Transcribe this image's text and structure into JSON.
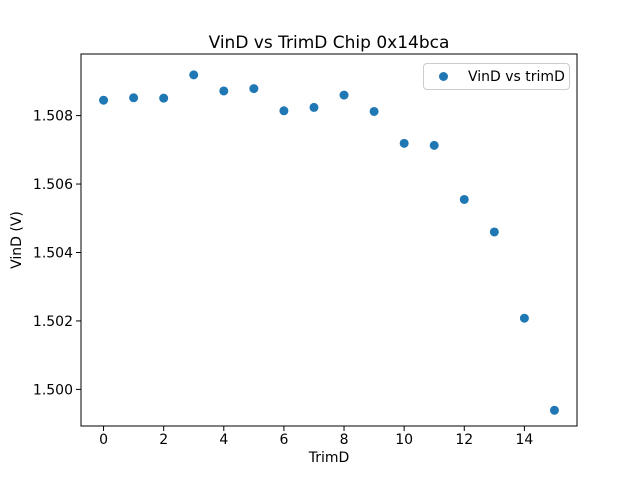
{
  "chart_data": {
    "type": "scatter",
    "title": "VinD vs TrimD Chip 0x14bca",
    "xlabel": "TrimD",
    "ylabel": "VinD (V)",
    "legend": {
      "label": "VinD vs trimD",
      "position": "upper right"
    },
    "grid": false,
    "series": [
      {
        "name": "VinD vs trimD",
        "marker": "circle",
        "marker_color": "#1f77b4",
        "x": [
          0,
          1,
          2,
          3,
          4,
          5,
          6,
          7,
          8,
          9,
          10,
          11,
          12,
          13,
          14,
          15
        ],
        "y": [
          1.50845,
          1.50852,
          1.50851,
          1.50919,
          1.50872,
          1.50879,
          1.50814,
          1.50824,
          1.5086,
          1.50812,
          1.50719,
          1.50713,
          1.50555,
          1.5046,
          1.50208,
          1.49939
        ]
      }
    ],
    "xlim": [
      -0.75,
      15.75
    ],
    "ylim": [
      1.49893,
      1.5098
    ],
    "xticks": [
      0,
      2,
      4,
      6,
      8,
      10,
      12,
      14
    ],
    "xtick_labels": [
      "0",
      "2",
      "4",
      "6",
      "8",
      "10",
      "12",
      "14"
    ],
    "yticks": [
      1.5,
      1.502,
      1.504,
      1.506,
      1.508
    ],
    "ytick_labels": [
      "1.500",
      "1.502",
      "1.504",
      "1.506",
      "1.508"
    ]
  },
  "colors": {
    "marker": "#1f77b4",
    "axis": "#000000",
    "tick_label": "#000000",
    "legend_border": "#cccccc",
    "background": "#ffffff"
  }
}
